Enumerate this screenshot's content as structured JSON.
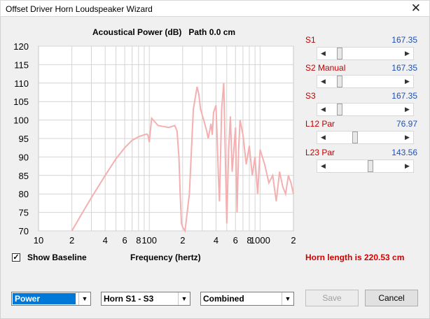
{
  "window": {
    "title": "Offset Driver Horn Loudspeaker Wizard",
    "close_glyph": "✕"
  },
  "plot": {
    "title": "Acoustical Power (dB)   Path 0.0 cm",
    "background": "#ffffff",
    "grid_color": "#d4d4d4",
    "curve_color": "#f4b0b0"
  },
  "chart_data": {
    "type": "line",
    "title": "Acoustical Power (dB)   Path 0.0 cm",
    "xlabel": "Frequency (hertz)",
    "ylabel": "",
    "xscale": "log",
    "xlim": [
      10,
      2000
    ],
    "ylim": [
      70,
      120
    ],
    "x_tick_labels": [
      "10",
      "2",
      "4",
      "6",
      "8",
      "100",
      "2",
      "4",
      "6",
      "8",
      "1000",
      "2"
    ],
    "x_tick_values": [
      10,
      20,
      40,
      60,
      80,
      100,
      200,
      400,
      600,
      800,
      1000,
      2000
    ],
    "y_tick_labels": [
      "120",
      "115",
      "110",
      "105",
      "100",
      "95",
      "90",
      "85",
      "80",
      "75",
      "70"
    ],
    "y_tick_values": [
      120,
      115,
      110,
      105,
      100,
      95,
      90,
      85,
      80,
      75,
      70
    ],
    "grid": true,
    "series": [
      {
        "x": [
          20,
          25,
          30,
          40,
          50,
          60,
          70,
          80,
          90,
          95,
          97,
          100,
          105,
          120,
          150,
          170,
          178,
          180,
          185,
          190,
          195,
          200,
          210,
          230,
          250,
          270,
          280,
          290,
          310,
          330,
          340,
          350,
          360,
          370,
          380,
          400,
          410,
          420,
          430,
          450,
          470,
          500,
          520,
          540,
          560,
          600,
          620,
          640,
          660,
          700,
          750,
          800,
          850,
          900,
          950,
          1000,
          1100,
          1200,
          1300,
          1400,
          1500,
          1600,
          1700,
          1800,
          1900,
          2000
        ],
        "y": [
          70,
          75,
          79,
          85,
          89.5,
          92.5,
          94.5,
          95.5,
          96,
          96.2,
          96,
          94,
          100.5,
          98.5,
          98,
          98.5,
          97,
          95,
          90,
          80,
          72,
          71,
          70,
          80,
          103,
          109,
          107,
          103,
          100,
          97,
          95,
          97,
          99,
          96,
          102,
          104,
          95,
          85,
          78,
          103,
          110,
          72,
          92,
          101,
          86,
          98,
          75,
          92,
          100,
          96,
          88,
          93,
          85,
          90,
          80,
          92,
          88,
          83,
          85,
          78,
          86,
          82,
          80,
          85,
          83,
          80
        ]
      }
    ]
  },
  "sliders": [
    {
      "label": "S1",
      "value": "167.35",
      "position": 0.12
    },
    {
      "label": "S2  Manual",
      "value": "167.35",
      "position": 0.12
    },
    {
      "label": "S3",
      "value": "167.35",
      "position": 0.12
    },
    {
      "label": "L12  Par",
      "value": "76.97",
      "position": 0.35
    },
    {
      "label": "L23  Par",
      "value": "143.56",
      "position": 0.58
    }
  ],
  "checkbox": {
    "label": "Show Baseline",
    "checked": true,
    "check_glyph": "✓"
  },
  "x_axis_title": "Frequency (hertz)",
  "horn_length": "Horn length is 220.53 cm",
  "combos": {
    "mode": "Power",
    "range": "Horn S1 - S3",
    "view": "Combined",
    "arrow_glyph": "▼"
  },
  "buttons": {
    "save": "Save",
    "cancel": "Cancel"
  },
  "scroll_glyphs": {
    "left": "◀",
    "right": "▶"
  }
}
